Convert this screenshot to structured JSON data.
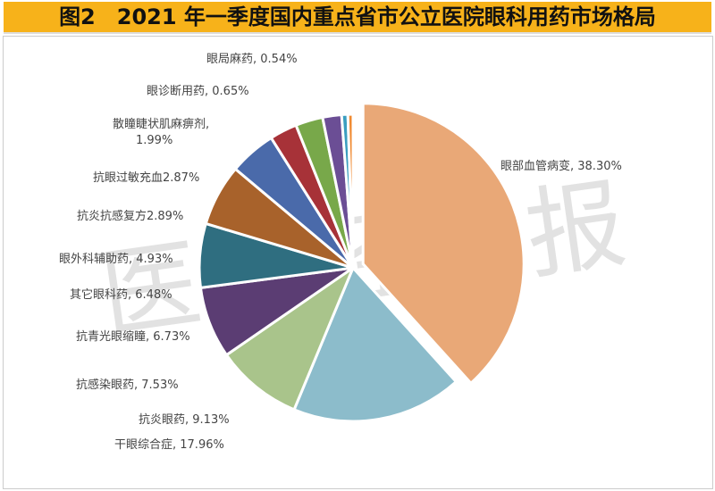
{
  "chart_data": {
    "type": "pie",
    "title": "图2　2021 年一季度国内重点省市公立医院眼科用药市场格局",
    "watermark": "医药经济报",
    "slices": [
      {
        "label": "眼部血管病变",
        "value": 38.3,
        "text": "眼部血管病变, 38.30%",
        "color": "#E9A877"
      },
      {
        "label": "干眼综合症",
        "value": 17.96,
        "text": "干眼综合症, 17.96%",
        "color": "#8CBCCB"
      },
      {
        "label": "抗炎眼药",
        "value": 9.13,
        "text": "抗炎眼药, 9.13%",
        "color": "#A9C48B"
      },
      {
        "label": "抗感染眼药",
        "value": 7.53,
        "text": "抗感染眼药, 7.53%",
        "color": "#5B3D73"
      },
      {
        "label": "抗青光眼缩瞳",
        "value": 6.73,
        "text": "抗青光眼缩瞳, 6.73%",
        "color": "#2F6E80"
      },
      {
        "label": "其它眼科药",
        "value": 6.48,
        "text": "其它眼科药, 6.48%",
        "color": "#A8622B"
      },
      {
        "label": "眼外科辅助药",
        "value": 4.93,
        "text": "眼外科辅助药, 4.93%",
        "color": "#4A6AAA"
      },
      {
        "label": "抗炎抗感复方",
        "value": 2.89,
        "text": "抗炎抗感复方2.89%",
        "color": "#A73238"
      },
      {
        "label": "抗眼过敏充血",
        "value": 2.87,
        "text": "抗眼过敏充血2.87%",
        "color": "#78A84A"
      },
      {
        "label": "散瞳睫状肌麻痹剂",
        "value": 1.99,
        "text": "散瞳睫状肌麻痹剂,",
        "text2": "1.99%",
        "color": "#6B4E95"
      },
      {
        "label": "眼诊断用药",
        "value": 0.65,
        "text": "眼诊断用药, 0.65%",
        "color": "#3A9EC0"
      },
      {
        "label": "眼局麻药",
        "value": 0.54,
        "text": "眼局麻药, 0.54%",
        "color": "#F08A30"
      }
    ]
  }
}
